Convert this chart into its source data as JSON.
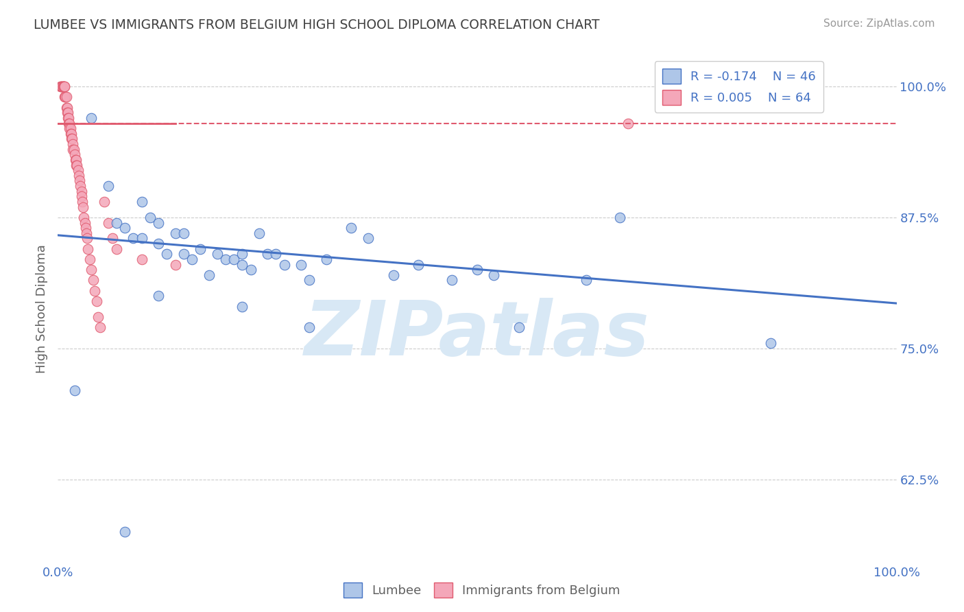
{
  "title": "LUMBEE VS IMMIGRANTS FROM BELGIUM HIGH SCHOOL DIPLOMA CORRELATION CHART",
  "source": "Source: ZipAtlas.com",
  "ylabel": "High School Diploma",
  "watermark": "ZIPatlas",
  "legend_blue_label": "Lumbee",
  "legend_pink_label": "Immigrants from Belgium",
  "R_blue": -0.174,
  "N_blue": 46,
  "R_pink": 0.005,
  "N_pink": 64,
  "xlim": [
    0.0,
    1.0
  ],
  "ylim": [
    0.545,
    1.03
  ],
  "yticks": [
    0.625,
    0.75,
    0.875,
    1.0
  ],
  "ytick_labels": [
    "62.5%",
    "75.0%",
    "87.5%",
    "100.0%"
  ],
  "xticks": [
    0.0,
    1.0
  ],
  "xtick_labels": [
    "0.0%",
    "100.0%"
  ],
  "blue_color": "#aec6e8",
  "pink_color": "#f4a7b9",
  "trendline_blue": "#4472c4",
  "trendline_pink": "#e05a6e",
  "blue_points_x": [
    0.02,
    0.04,
    0.06,
    0.07,
    0.08,
    0.09,
    0.1,
    0.1,
    0.11,
    0.12,
    0.12,
    0.13,
    0.14,
    0.15,
    0.15,
    0.16,
    0.17,
    0.18,
    0.19,
    0.2,
    0.21,
    0.22,
    0.22,
    0.23,
    0.24,
    0.25,
    0.26,
    0.27,
    0.29,
    0.3,
    0.32,
    0.35,
    0.37,
    0.4,
    0.43,
    0.47,
    0.5,
    0.52,
    0.55,
    0.63,
    0.67,
    0.85,
    0.3,
    0.22,
    0.12,
    0.08
  ],
  "blue_points_y": [
    0.71,
    0.97,
    0.905,
    0.87,
    0.865,
    0.855,
    0.855,
    0.89,
    0.875,
    0.87,
    0.85,
    0.84,
    0.86,
    0.86,
    0.84,
    0.835,
    0.845,
    0.82,
    0.84,
    0.835,
    0.835,
    0.84,
    0.83,
    0.825,
    0.86,
    0.84,
    0.84,
    0.83,
    0.83,
    0.815,
    0.835,
    0.865,
    0.855,
    0.82,
    0.83,
    0.815,
    0.825,
    0.82,
    0.77,
    0.815,
    0.875,
    0.755,
    0.77,
    0.79,
    0.8,
    0.575
  ],
  "pink_points_x": [
    0.003,
    0.004,
    0.005,
    0.005,
    0.006,
    0.006,
    0.007,
    0.007,
    0.008,
    0.008,
    0.008,
    0.009,
    0.009,
    0.01,
    0.01,
    0.011,
    0.011,
    0.012,
    0.012,
    0.013,
    0.013,
    0.014,
    0.014,
    0.015,
    0.015,
    0.016,
    0.016,
    0.017,
    0.018,
    0.018,
    0.019,
    0.02,
    0.021,
    0.022,
    0.022,
    0.023,
    0.024,
    0.025,
    0.026,
    0.027,
    0.028,
    0.028,
    0.029,
    0.03,
    0.031,
    0.032,
    0.033,
    0.034,
    0.035,
    0.036,
    0.038,
    0.04,
    0.042,
    0.044,
    0.046,
    0.048,
    0.05,
    0.055,
    0.06,
    0.065,
    0.07,
    0.1,
    0.14,
    0.68
  ],
  "pink_points_y": [
    1.0,
    1.0,
    1.0,
    1.0,
    1.0,
    1.0,
    1.0,
    1.0,
    1.0,
    1.0,
    0.99,
    0.99,
    0.99,
    0.99,
    0.98,
    0.98,
    0.975,
    0.975,
    0.97,
    0.97,
    0.965,
    0.965,
    0.96,
    0.96,
    0.955,
    0.955,
    0.95,
    0.95,
    0.945,
    0.94,
    0.94,
    0.935,
    0.93,
    0.93,
    0.925,
    0.925,
    0.92,
    0.915,
    0.91,
    0.905,
    0.9,
    0.895,
    0.89,
    0.885,
    0.875,
    0.87,
    0.865,
    0.86,
    0.855,
    0.845,
    0.835,
    0.825,
    0.815,
    0.805,
    0.795,
    0.78,
    0.77,
    0.89,
    0.87,
    0.855,
    0.845,
    0.835,
    0.83,
    0.965
  ],
  "blue_trend_x": [
    0.0,
    1.0
  ],
  "blue_trend_y_start": 0.858,
  "blue_trend_y_end": 0.793,
  "pink_trend_y": 0.965,
  "background_color": "#ffffff",
  "grid_color": "#cccccc",
  "title_color": "#404040",
  "axis_label_color": "#606060",
  "tick_color": "#4472c4",
  "watermark_color": "#d8e8f5"
}
